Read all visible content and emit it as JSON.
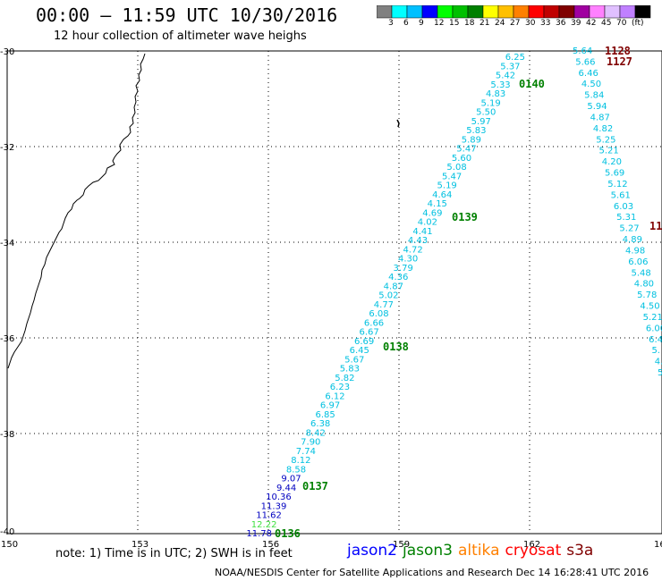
{
  "title": "00:00 – 11:59 UTC 10/30/2016",
  "subtitle": "12 hour collection of altimeter wave heighs",
  "colorbar": {
    "colors": [
      "#808080",
      "#00ffff",
      "#00c0ff",
      "#0000ff",
      "#00ff00",
      "#00c000",
      "#008000",
      "#ffff00",
      "#ffc000",
      "#ff8000",
      "#ff0000",
      "#c00000",
      "#800000",
      "#a000a0",
      "#ff80ff",
      "#e0c0ff",
      "#c080ff",
      "#000000"
    ],
    "labels": [
      "3",
      "6",
      "9",
      "12",
      "15",
      "18",
      "21",
      "24",
      "27",
      "30",
      "33",
      "36",
      "39",
      "42",
      "45",
      "70",
      "(ft)"
    ]
  },
  "map": {
    "lon_ticks": [
      "150",
      "153",
      "156",
      "159",
      "162",
      "165"
    ],
    "lat_ticks": [
      "-30",
      "-32",
      "-34",
      "-36",
      "-38",
      "-40"
    ]
  },
  "pass_labels": [
    {
      "text": "0140",
      "color": "green"
    },
    {
      "text": "0139",
      "color": "green"
    },
    {
      "text": "0138",
      "color": "green"
    },
    {
      "text": "0137",
      "color": "green"
    },
    {
      "text": "0136",
      "color": "green"
    },
    {
      "text": "1128",
      "color": "darkred"
    },
    {
      "text": "1127",
      "color": "darkred"
    },
    {
      "text": "11",
      "color": "darkred"
    }
  ],
  "track1": [
    {
      "v": "6.25",
      "c": "#00c0e0"
    },
    {
      "v": "5.37",
      "c": "#00c0e0"
    },
    {
      "v": "5.42",
      "c": "#00c0e0"
    },
    {
      "v": "5.33",
      "c": "#00c0e0"
    },
    {
      "v": "4.83",
      "c": "#00c0e0"
    },
    {
      "v": "5.19",
      "c": "#00c0e0"
    },
    {
      "v": "5.50",
      "c": "#00c0e0"
    },
    {
      "v": "5.97",
      "c": "#00c0e0"
    },
    {
      "v": "5.83",
      "c": "#00c0e0"
    },
    {
      "v": "5.89",
      "c": "#00c0e0"
    },
    {
      "v": "5.47",
      "c": "#00c0e0"
    },
    {
      "v": "5.60",
      "c": "#00c0e0"
    },
    {
      "v": "5.08",
      "c": "#00c0e0"
    },
    {
      "v": "5.47",
      "c": "#00c0e0"
    },
    {
      "v": "5.19",
      "c": "#00c0e0"
    },
    {
      "v": "4.64",
      "c": "#00c0e0"
    },
    {
      "v": "4.15",
      "c": "#00c0e0"
    },
    {
      "v": "4.69",
      "c": "#00c0e0"
    },
    {
      "v": "4.02",
      "c": "#00c0e0"
    },
    {
      "v": "4.41",
      "c": "#00c0e0"
    },
    {
      "v": "4.43",
      "c": "#00c0e0"
    },
    {
      "v": "4.72",
      "c": "#00c0e0"
    },
    {
      "v": "4.30",
      "c": "#00c0e0"
    },
    {
      "v": "3.79",
      "c": "#00c0e0"
    },
    {
      "v": "4.36",
      "c": "#00c0e0"
    },
    {
      "v": "4.87",
      "c": "#00c0e0"
    },
    {
      "v": "5.02",
      "c": "#00c0e0"
    },
    {
      "v": "4.77",
      "c": "#00c0e0"
    },
    {
      "v": "6.08",
      "c": "#00c0e0"
    },
    {
      "v": "6.66",
      "c": "#00c0e0"
    },
    {
      "v": "6.67",
      "c": "#00c0e0"
    },
    {
      "v": "6.69",
      "c": "#00c0e0"
    },
    {
      "v": "6.45",
      "c": "#00c0e0"
    },
    {
      "v": "5.67",
      "c": "#00c0e0"
    },
    {
      "v": "5.83",
      "c": "#00c0e0"
    },
    {
      "v": "5.82",
      "c": "#00c0e0"
    },
    {
      "v": "6.23",
      "c": "#00c0e0"
    },
    {
      "v": "6.12",
      "c": "#00c0e0"
    },
    {
      "v": "6.97",
      "c": "#00c0e0"
    },
    {
      "v": "6.85",
      "c": "#00c0e0"
    },
    {
      "v": "6.38",
      "c": "#00c0e0"
    },
    {
      "v": "8.42",
      "c": "#00c0e0"
    },
    {
      "v": "7.90",
      "c": "#00c0e0"
    },
    {
      "v": "7.74",
      "c": "#00c0e0"
    },
    {
      "v": "8.12",
      "c": "#00c0e0"
    },
    {
      "v": "8.58",
      "c": "#00c0e0"
    },
    {
      "v": "9.07",
      "c": "#0000c0"
    },
    {
      "v": "9.44",
      "c": "#0000c0"
    },
    {
      "v": "10.36",
      "c": "#0000c0"
    },
    {
      "v": "11.39",
      "c": "#0000c0"
    },
    {
      "v": "11.62",
      "c": "#0000c0"
    },
    {
      "v": "12.22",
      "c": "#40e040"
    },
    {
      "v": "11.78",
      "c": "#0000c0"
    }
  ],
  "track2": [
    {
      "v": "5.64",
      "c": "#00c0e0"
    },
    {
      "v": "5.66",
      "c": "#00c0e0"
    },
    {
      "v": "6.46",
      "c": "#00c0e0"
    },
    {
      "v": "4.50",
      "c": "#00c0e0"
    },
    {
      "v": "5.84",
      "c": "#00c0e0"
    },
    {
      "v": "5.94",
      "c": "#00c0e0"
    },
    {
      "v": "4.87",
      "c": "#00c0e0"
    },
    {
      "v": "4.82",
      "c": "#00c0e0"
    },
    {
      "v": "5.25",
      "c": "#00c0e0"
    },
    {
      "v": "5.21",
      "c": "#00c0e0"
    },
    {
      "v": "4.20",
      "c": "#00c0e0"
    },
    {
      "v": "5.69",
      "c": "#00c0e0"
    },
    {
      "v": "5.12",
      "c": "#00c0e0"
    },
    {
      "v": "5.61",
      "c": "#00c0e0"
    },
    {
      "v": "6.03",
      "c": "#00c0e0"
    },
    {
      "v": "5.31",
      "c": "#00c0e0"
    },
    {
      "v": "5.27",
      "c": "#00c0e0"
    },
    {
      "v": "4.89",
      "c": "#00c0e0"
    },
    {
      "v": "4.98",
      "c": "#00c0e0"
    },
    {
      "v": "6.06",
      "c": "#00c0e0"
    },
    {
      "v": "5.48",
      "c": "#00c0e0"
    },
    {
      "v": "4.80",
      "c": "#00c0e0"
    },
    {
      "v": "5.78",
      "c": "#00c0e0"
    },
    {
      "v": "4.50",
      "c": "#00c0e0"
    },
    {
      "v": "5.21",
      "c": "#00c0e0"
    },
    {
      "v": "6.00",
      "c": "#00c0e0"
    },
    {
      "v": "6.4",
      "c": "#00c0e0"
    },
    {
      "v": "5.",
      "c": "#00c0e0"
    },
    {
      "v": "4.",
      "c": "#00c0e0"
    },
    {
      "v": "5",
      "c": "#00c0e0"
    }
  ],
  "footnote": "note: 1) Time is in UTC; 2) SWH is in feet",
  "satellites": [
    {
      "name": "jason2",
      "color": "#0000ff"
    },
    {
      "name": "jason3",
      "color": "#008000"
    },
    {
      "name": "altika",
      "color": "#ff8000"
    },
    {
      "name": "cryosat",
      "color": "#ff0000"
    },
    {
      "name": "s3a",
      "color": "#800000"
    }
  ],
  "footer": "NOAA/NESDIS Center for Satellite Applications and Research    Dec 14 16:28:41 UTC 2016"
}
